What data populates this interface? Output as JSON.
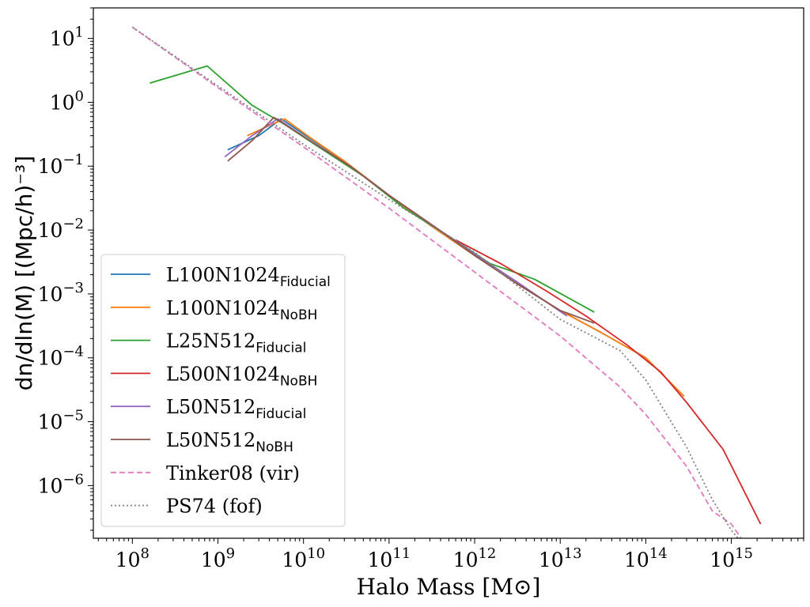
{
  "chart_data": {
    "type": "line",
    "xlabel": "Halo Mass [M⊙]",
    "ylabel": "dn/dln(M) [(Mpc/h)⁻³]",
    "x_scale": "log",
    "y_scale": "log",
    "xlim": [
      35000000.0,
      7000000000000000.0
    ],
    "ylim": [
      1.5e-07,
      30.0
    ],
    "x_ticks": [
      {
        "value": 100000000.0,
        "base": "10",
        "exp": "8"
      },
      {
        "value": 1000000000.0,
        "base": "10",
        "exp": "9"
      },
      {
        "value": 10000000000.0,
        "base": "10",
        "exp": "10"
      },
      {
        "value": 100000000000.0,
        "base": "10",
        "exp": "11"
      },
      {
        "value": 1000000000000.0,
        "base": "10",
        "exp": "12"
      },
      {
        "value": 10000000000000.0,
        "base": "10",
        "exp": "13"
      },
      {
        "value": 100000000000000.0,
        "base": "10",
        "exp": "14"
      },
      {
        "value": 1000000000000000.0,
        "base": "10",
        "exp": "15"
      }
    ],
    "y_ticks": [
      {
        "value": 10.0,
        "base": "10",
        "exp": "1"
      },
      {
        "value": 1.0,
        "base": "10",
        "exp": "0"
      },
      {
        "value": 0.1,
        "base": "10",
        "exp": "−1"
      },
      {
        "value": 0.01,
        "base": "10",
        "exp": "−2"
      },
      {
        "value": 0.001,
        "base": "10",
        "exp": "−3"
      },
      {
        "value": 0.0001,
        "base": "10",
        "exp": "−4"
      },
      {
        "value": 1e-05,
        "base": "10",
        "exp": "−5"
      },
      {
        "value": 1e-06,
        "base": "10",
        "exp": "−6"
      }
    ],
    "grid": false,
    "legend_position": "lower-left",
    "series": [
      {
        "name": "L100N1024",
        "subscript": "Fiducial",
        "color": "#1f77b4",
        "style": "solid",
        "x": [
          1300000000.0,
          3000000000.0,
          5500000000.0,
          12000000000.0,
          30000000000.0,
          100000000000.0,
          300000000000.0,
          1000000000000.0,
          3000000000000.0,
          10000000000000.0,
          30000000000000.0,
          100000000000000.0,
          280000000000000.0
        ],
        "y": [
          0.18,
          0.3,
          0.55,
          0.27,
          0.12,
          0.035,
          0.012,
          0.004,
          0.0015,
          0.00055,
          0.00025,
          0.0001,
          2.5e-05
        ]
      },
      {
        "name": "L100N1024",
        "subscript": "NoBH",
        "color": "#ff7f0e",
        "style": "solid",
        "x": [
          2200000000.0,
          3500000000.0,
          6000000000.0,
          12000000000.0,
          30000000000.0,
          100000000000.0,
          300000000000.0,
          1000000000000.0,
          3000000000000.0,
          10000000000000.0,
          30000000000000.0,
          100000000000000.0,
          280000000000000.0
        ],
        "y": [
          0.3,
          0.4,
          0.55,
          0.28,
          0.12,
          0.035,
          0.012,
          0.004,
          0.0015,
          0.00055,
          0.00025,
          0.0001,
          2.5e-05
        ]
      },
      {
        "name": "L25N512",
        "subscript": "Fiducial",
        "color": "#2ca02c",
        "style": "solid",
        "x": [
          160000000.0,
          750000000.0,
          2500000000.0,
          6000000000.0,
          15000000000.0,
          50000000000.0,
          150000000000.0,
          500000000000.0,
          1500000000000.0,
          5000000000000.0,
          25000000000000.0
        ],
        "y": [
          2.0,
          3.7,
          0.9,
          0.45,
          0.2,
          0.07,
          0.022,
          0.008,
          0.003,
          0.0017,
          0.00052
        ]
      },
      {
        "name": "L500N1024",
        "subscript": "NoBH",
        "color": "#d62728",
        "style": "solid",
        "x": [
          600000000000.0,
          2000000000000.0,
          7000000000000.0,
          20000000000000.0,
          60000000000000.0,
          150000000000000.0,
          300000000000000.0,
          800000000000000.0,
          2200000000000000.0
        ],
        "y": [
          0.007,
          0.003,
          0.0011,
          0.00045,
          0.00016,
          6e-05,
          2e-05,
          3.7e-06,
          2.5e-07
        ]
      },
      {
        "name": "L50N512",
        "subscript": "Fiducial",
        "color": "#9467bd",
        "style": "solid",
        "x": [
          1200000000.0,
          2500000000.0,
          5000000000.0,
          12000000000.0,
          35000000000.0,
          100000000000.0,
          350000000000.0,
          1000000000000.0,
          3000000000000.0,
          12000000000000.0
        ],
        "y": [
          0.14,
          0.3,
          0.55,
          0.25,
          0.1,
          0.035,
          0.011,
          0.0042,
          0.0016,
          0.00045
        ]
      },
      {
        "name": "L50N512",
        "subscript": "NoBH",
        "color": "#8c564b",
        "style": "solid",
        "x": [
          1300000000.0,
          2500000000.0,
          4500000000.0,
          12000000000.0,
          35000000000.0,
          100000000000.0,
          350000000000.0,
          1000000000000.0,
          3000000000000.0,
          10000000000000.0,
          25000000000000.0
        ],
        "y": [
          0.12,
          0.25,
          0.58,
          0.25,
          0.1,
          0.035,
          0.011,
          0.004,
          0.0015,
          0.00055,
          0.00035
        ]
      },
      {
        "name": "Tinker08 (vir)",
        "color": "#e377c2",
        "style": "dashed",
        "x": [
          100000000.0,
          1000000000.0,
          10000000000.0,
          100000000000.0,
          1000000000000.0,
          10000000000000.0,
          50000000000000.0,
          100000000000000.0,
          300000000000000.0,
          600000000000000.0,
          1000000000000000.0,
          1300000000000000.0
        ],
        "y": [
          15,
          1.7,
          0.2,
          0.022,
          0.0022,
          0.00022,
          3.5e-05,
          1.3e-05,
          2e-06,
          4e-07,
          2.5e-07,
          1.5e-07
        ]
      },
      {
        "name": "PS74 (fof)",
        "color": "#7f7f7f",
        "style": "dotted",
        "x": [
          100000000.0,
          1000000000.0,
          10000000000.0,
          100000000000.0,
          1000000000000.0,
          10000000000000.0,
          50000000000000.0,
          100000000000000.0,
          300000000000000.0,
          600000000000000.0,
          1000000000000000.0,
          1200000000000000.0
        ],
        "y": [
          15,
          1.8,
          0.22,
          0.03,
          0.0045,
          0.0004,
          0.00013,
          4.5e-05,
          4e-06,
          6e-07,
          2e-07,
          1.5e-07
        ]
      }
    ]
  }
}
